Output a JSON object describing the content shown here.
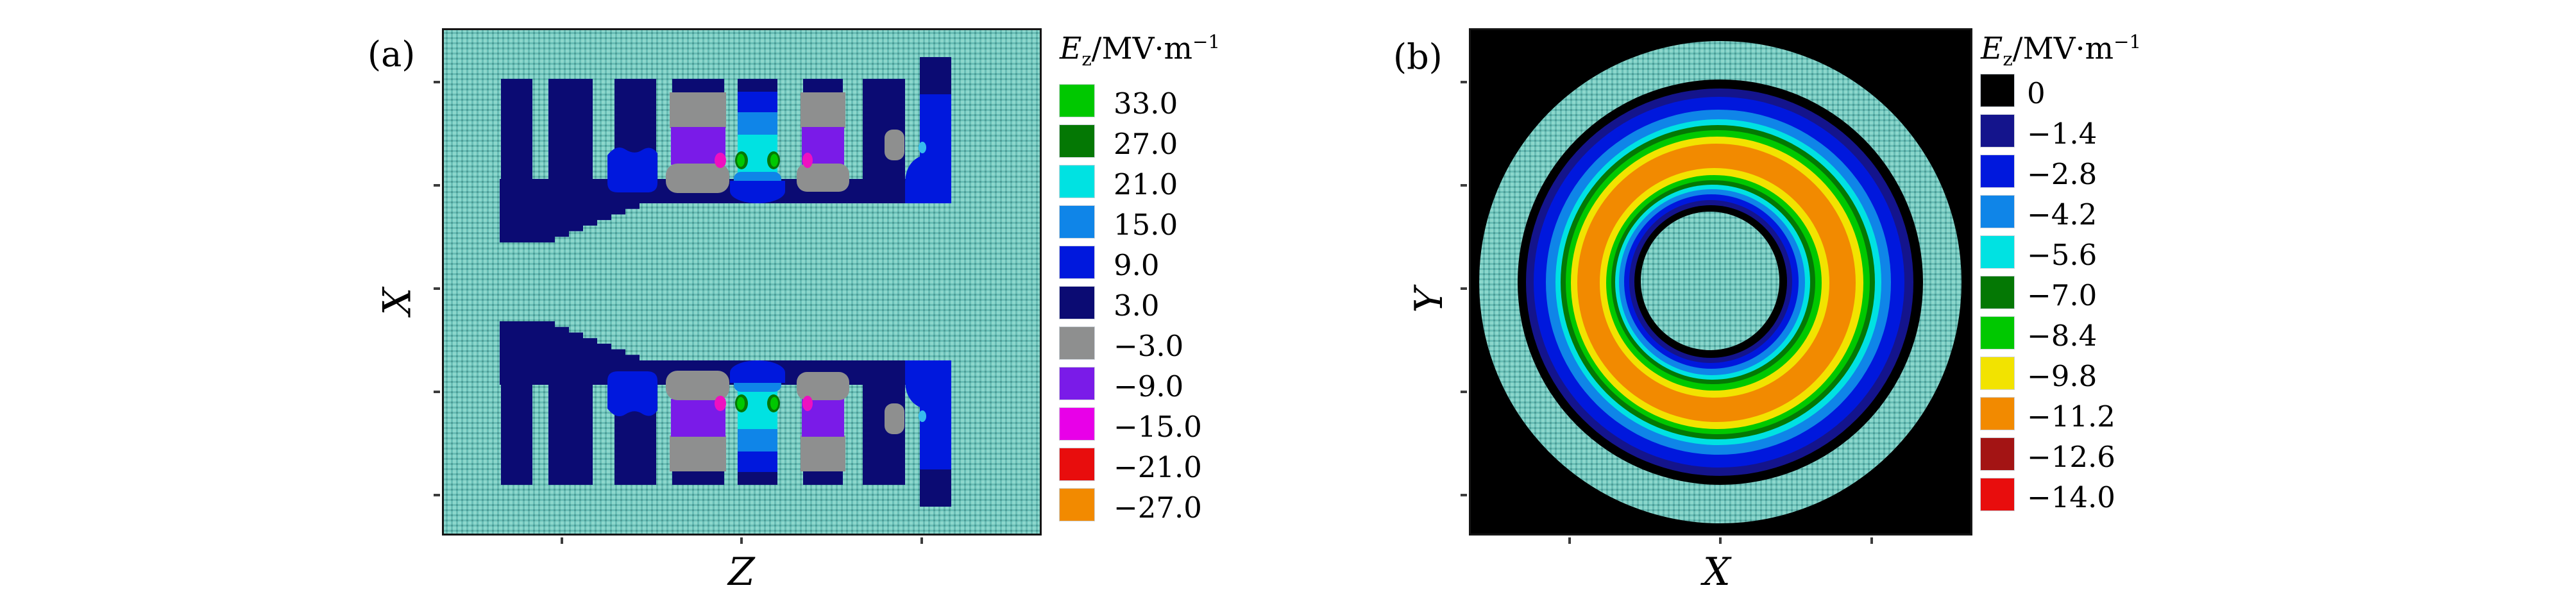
{
  "figure": {
    "panels": [
      {
        "label": "(a)",
        "x_axis_label": "Z",
        "y_axis_label": "X",
        "legend_title": {
          "symbol": "E",
          "subscript": "z",
          "unit": "/MV·m",
          "exponent": "−1"
        },
        "legend": [
          {
            "value": "33.0",
            "color": "#00C800"
          },
          {
            "value": "27.0",
            "color": "#047804"
          },
          {
            "value": "21.0",
            "color": "#00E2E2"
          },
          {
            "value": "15.0",
            "color": "#0F85E8"
          },
          {
            "value": "9.0",
            "color": "#0018DD"
          },
          {
            "value": "3.0",
            "color": "#0B0B73"
          },
          {
            "value": "−3.0",
            "color": "#8E8F8F"
          },
          {
            "value": "−9.0",
            "color": "#7A1BE8"
          },
          {
            "value": "−15.0",
            "color": "#E800E8"
          },
          {
            "value": "−21.0",
            "color": "#E80D0D"
          },
          {
            "value": "−27.0",
            "color": "#F28A00"
          }
        ]
      },
      {
        "label": "(b)",
        "x_axis_label": "X",
        "y_axis_label": "Y",
        "legend_title": {
          "symbol": "E",
          "subscript": "z",
          "unit": "/MV·m",
          "exponent": "−1"
        },
        "legend": [
          {
            "value": "0",
            "color": "#000000"
          },
          {
            "value": "−1.4",
            "color": "#14148C"
          },
          {
            "value": "−2.8",
            "color": "#0018DD"
          },
          {
            "value": "−4.2",
            "color": "#0F85E8"
          },
          {
            "value": "−5.6",
            "color": "#00E2E2"
          },
          {
            "value": "−7.0",
            "color": "#047804"
          },
          {
            "value": "−8.4",
            "color": "#00C800"
          },
          {
            "value": "−9.8",
            "color": "#F2E300"
          },
          {
            "value": "−11.2",
            "color": "#F28A00"
          },
          {
            "value": "−12.6",
            "color": "#A31414"
          },
          {
            "value": "−14.0",
            "color": "#E80D0D"
          }
        ]
      }
    ]
  },
  "chart_data": [
    {
      "type": "heatmap",
      "title": "(a)",
      "xlabel": "Z",
      "ylabel": "X",
      "legend_title": "Ez/MV·m−1",
      "legend_position": "right",
      "grid": false,
      "levels": [
        {
          "value": 33.0,
          "color": "#00C800"
        },
        {
          "value": 27.0,
          "color": "#047804"
        },
        {
          "value": 21.0,
          "color": "#00E2E2"
        },
        {
          "value": 15.0,
          "color": "#0F85E8"
        },
        {
          "value": 9.0,
          "color": "#0018DD"
        },
        {
          "value": 3.0,
          "color": "#0B0B73"
        },
        {
          "value": -3.0,
          "color": "#8E8F8F"
        },
        {
          "value": -9.0,
          "color": "#7A1BE8"
        },
        {
          "value": -15.0,
          "color": "#E800E8"
        },
        {
          "value": -21.0,
          "color": "#E80D0D"
        },
        {
          "value": -27.0,
          "color": "#F28A00"
        }
      ],
      "description": "Longitudinal electric-field contour map in the Z–X plane of an interdigital accelerating cavity: two mirror-symmetric comb-shaped electrodes (dark navy, field 3.0) with vertical stems on a tapered girder, separated by a horn-shaped beam channel; field pockets between stems show gray (−3.0), violet (−9.0), magenta spots (−15.0), blue (9.0), dodger-blue (15.0), cyan (21.0) columns with small green spots (33.0/27.0); mesh background is the teal cavity vacuum region."
    },
    {
      "type": "heatmap",
      "title": "(b)",
      "xlabel": "X",
      "ylabel": "Y",
      "legend_title": "Ez/MV·m−1",
      "legend_position": "right",
      "grid": false,
      "levels": [
        {
          "value": 0,
          "color": "#000000"
        },
        {
          "value": -1.4,
          "color": "#14148C"
        },
        {
          "value": -2.8,
          "color": "#0018DD"
        },
        {
          "value": -4.2,
          "color": "#0F85E8"
        },
        {
          "value": -5.6,
          "color": "#00E2E2"
        },
        {
          "value": -7.0,
          "color": "#047804"
        },
        {
          "value": -8.4,
          "color": "#00C800"
        },
        {
          "value": -9.8,
          "color": "#F2E300"
        },
        {
          "value": -11.2,
          "color": "#F28A00"
        },
        {
          "value": -12.6,
          "color": "#A31414"
        },
        {
          "value": -14.0,
          "color": "#E80D0D"
        }
      ],
      "description": "Transverse X–Y cross-section contour map: black background (0), textured teal outer ring (cavity wall) and teal inner disc (inner conductor); between them concentric rainbow rings from navy/blue/dodger/cyan/dark-green/green/yellow into a thick orange annulus (−11.2) and back through yellow/green/blue to a black ring around the inner disc; rings slightly thicker on the right side."
    }
  ]
}
